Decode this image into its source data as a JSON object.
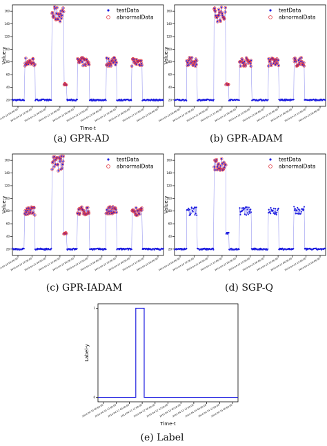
{
  "captions": {
    "a": "(a) GPR-AD",
    "b": "(b) GPR-ADAM",
    "c": "(c) GPR-IADAM",
    "d": "(d) SGP-Q",
    "e": "(e) Label"
  },
  "legend": {
    "normal": "testData",
    "abnormal": "abnormalData"
  },
  "colors": {
    "normal": "#1f1fe0",
    "abnormal": "#e0303a",
    "axis": "#000000"
  },
  "time_ticks": [
    "2014-04-10 00:00:00",
    "2014-04-10 12:00:00",
    "2014-04-11 00:00:00",
    "2014-04-11 12:00:00",
    "2014-04-12 00:00:00",
    "2014-04-12 12:00:00",
    "2014-04-13 00:00:00",
    "2014-04-13 12:00:00",
    "2014-04-14 00:00:00",
    "2014-04-14 12:00:00",
    "2014-04-15 00:00:00"
  ],
  "chart_data": [
    {
      "id": "a",
      "type": "scatter",
      "title": "",
      "xlabel": "Time-t",
      "ylabel": "Value-y",
      "yticks": [
        20,
        40,
        60,
        80,
        100,
        120,
        140,
        160
      ],
      "ylim": [
        10,
        170
      ],
      "xlim": [
        0,
        100
      ],
      "legend_position": "top-right",
      "series": [
        {
          "name": "testData",
          "segments": [
            {
              "x": [
                0,
                8
              ],
              "y": 20
            },
            {
              "x": [
                8,
                15
              ],
              "y": 80
            },
            {
              "x": [
                15,
                26
              ],
              "y": 20
            },
            {
              "x": [
                26,
                34
              ],
              "y": 155
            },
            {
              "x": [
                34,
                36
              ],
              "y": 45
            },
            {
              "x": [
                36,
                43
              ],
              "y": 20
            },
            {
              "x": [
                43,
                51
              ],
              "y": 80
            },
            {
              "x": [
                51,
                62
              ],
              "y": 20
            },
            {
              "x": [
                62,
                69
              ],
              "y": 80
            },
            {
              "x": [
                69,
                79
              ],
              "y": 20
            },
            {
              "x": [
                79,
                86
              ],
              "y": 80
            },
            {
              "x": [
                86,
                100
              ],
              "y": 20
            }
          ]
        },
        {
          "name": "abnormalData",
          "ranges": [
            [
              8,
              15
            ],
            [
              26,
              36
            ],
            [
              43,
              51
            ],
            [
              62,
              69
            ],
            [
              79,
              86
            ]
          ]
        }
      ]
    },
    {
      "id": "b",
      "type": "scatter",
      "title": "",
      "xlabel": "",
      "ylabel": "Value-y",
      "yticks": [
        20,
        40,
        60,
        80,
        100,
        120,
        140,
        160
      ],
      "ylim": [
        10,
        170
      ],
      "xlim": [
        0,
        100
      ],
      "legend_position": "top-right",
      "series": [
        {
          "name": "testData",
          "segments": [
            {
              "x": [
                0,
                8
              ],
              "y": 20
            },
            {
              "x": [
                8,
                15
              ],
              "y": 80
            },
            {
              "x": [
                15,
                26
              ],
              "y": 20
            },
            {
              "x": [
                26,
                34
              ],
              "y": 155
            },
            {
              "x": [
                34,
                36
              ],
              "y": 45
            },
            {
              "x": [
                36,
                43
              ],
              "y": 20
            },
            {
              "x": [
                43,
                51
              ],
              "y": 80
            },
            {
              "x": [
                51,
                62
              ],
              "y": 20
            },
            {
              "x": [
                62,
                69
              ],
              "y": 80
            },
            {
              "x": [
                69,
                79
              ],
              "y": 20
            },
            {
              "x": [
                79,
                86
              ],
              "y": 80
            },
            {
              "x": [
                86,
                100
              ],
              "y": 20
            }
          ]
        },
        {
          "name": "abnormalData",
          "ranges": [
            [
              8,
              15
            ],
            [
              26,
              36
            ],
            [
              43,
              51
            ],
            [
              62,
              69
            ],
            [
              79,
              86
            ]
          ]
        }
      ]
    },
    {
      "id": "c",
      "type": "scatter",
      "title": "",
      "xlabel": "",
      "ylabel": "Value-y",
      "yticks": [
        20,
        40,
        60,
        80,
        100,
        120,
        140,
        160
      ],
      "ylim": [
        10,
        170
      ],
      "xlim": [
        0,
        100
      ],
      "legend_position": "top-right",
      "series": [
        {
          "name": "testData",
          "segments": [
            {
              "x": [
                0,
                8
              ],
              "y": 20
            },
            {
              "x": [
                8,
                15
              ],
              "y": 80
            },
            {
              "x": [
                15,
                26
              ],
              "y": 20
            },
            {
              "x": [
                26,
                34
              ],
              "y": 155
            },
            {
              "x": [
                34,
                36
              ],
              "y": 45
            },
            {
              "x": [
                36,
                43
              ],
              "y": 20
            },
            {
              "x": [
                43,
                51
              ],
              "y": 80
            },
            {
              "x": [
                51,
                62
              ],
              "y": 20
            },
            {
              "x": [
                62,
                69
              ],
              "y": 80
            },
            {
              "x": [
                69,
                79
              ],
              "y": 20
            },
            {
              "x": [
                79,
                86
              ],
              "y": 80
            },
            {
              "x": [
                86,
                100
              ],
              "y": 20
            }
          ]
        },
        {
          "name": "abnormalData",
          "ranges": [
            [
              8,
              15
            ],
            [
              26,
              36
            ],
            [
              43,
              51
            ],
            [
              62,
              69
            ],
            [
              79,
              86
            ]
          ]
        }
      ]
    },
    {
      "id": "d",
      "type": "scatter",
      "title": "",
      "xlabel": "",
      "ylabel": "Value-y",
      "yticks": [
        20,
        40,
        60,
        80,
        100,
        120,
        140,
        160
      ],
      "ylim": [
        10,
        170
      ],
      "xlim": [
        0,
        100
      ],
      "legend_position": "top-right",
      "series": [
        {
          "name": "testData",
          "segments": [
            {
              "x": [
                0,
                8
              ],
              "y": 20
            },
            {
              "x": [
                8,
                15
              ],
              "y": 80
            },
            {
              "x": [
                15,
                26
              ],
              "y": 20
            },
            {
              "x": [
                26,
                34
              ],
              "y": 155
            },
            {
              "x": [
                34,
                36
              ],
              "y": 45
            },
            {
              "x": [
                36,
                43
              ],
              "y": 20
            },
            {
              "x": [
                43,
                51
              ],
              "y": 80
            },
            {
              "x": [
                51,
                62
              ],
              "y": 20
            },
            {
              "x": [
                62,
                69
              ],
              "y": 80
            },
            {
              "x": [
                69,
                79
              ],
              "y": 20
            },
            {
              "x": [
                79,
                86
              ],
              "y": 80
            },
            {
              "x": [
                86,
                100
              ],
              "y": 20
            }
          ]
        },
        {
          "name": "abnormalData",
          "ranges": [
            [
              26,
              34
            ]
          ]
        }
      ]
    },
    {
      "id": "e",
      "type": "line",
      "title": "",
      "xlabel": "Time-t",
      "ylabel": "Label-y",
      "yticks": [
        0,
        1
      ],
      "ylim": [
        -0.05,
        1.05
      ],
      "xlim": [
        0,
        100
      ],
      "series": [
        {
          "name": "",
          "x": [
            0,
            27,
            27,
            33,
            33,
            100
          ],
          "y": [
            0,
            0,
            1,
            1,
            0,
            0
          ]
        }
      ]
    }
  ]
}
